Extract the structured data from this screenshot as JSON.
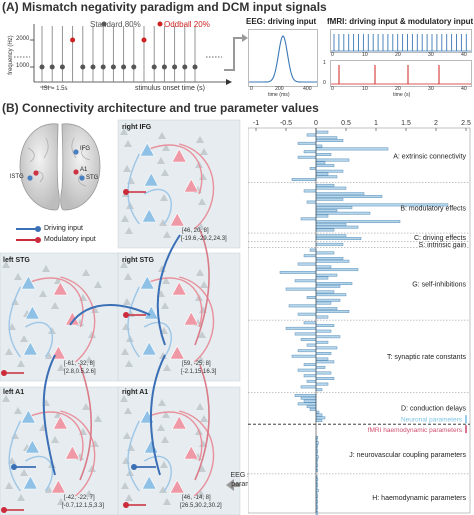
{
  "panel_a": {
    "heading": "(A) Mismatch negativity paradigm and DCM input signals",
    "legend_standard": "Standard 80%",
    "legend_oddball": "Oddball 20%",
    "y_axis_label": "frequency (Hz)",
    "y_ticks": [
      "2000",
      "1000"
    ],
    "x_axis_label": "stimulus onset time (s)",
    "isi_label": "ISI = 1.5s",
    "eeg_title": "EEG: driving input",
    "eeg_xlabel": "time (ms)",
    "eeg_xticks": [
      "0",
      "200",
      "400"
    ],
    "fmri_title": "fMRI: driving input & modulatory input",
    "fmri_top_ticks": [
      "0",
      "10",
      "20",
      "30",
      "40"
    ],
    "fmri_bottom_ticks": [
      "0",
      "10",
      "20",
      "30",
      "40"
    ],
    "fmri_y0": "0",
    "fmri_y1": "1",
    "fmri_xlabel": "time (s)",
    "colors": {
      "standard": "#555555",
      "oddball": "#cc2222",
      "eeg_line": "#3a78b5",
      "fmri_top": "#3a78b5",
      "fmri_bottom": "#cc2222"
    }
  },
  "panel_b": {
    "heading": "(B) Connectivity architecture and true parameter values",
    "brain_labels": {
      "ifg": "IFG",
      "a1": "A1",
      "stg": "STG",
      "lstg": "lSTG"
    },
    "legend_driving": "Driving input",
    "legend_modulatory": "Modulatory input",
    "nodes": {
      "right_ifg": {
        "name": "right IFG",
        "coords": "[46, 20, 8]",
        "params": "[-19.6,-29.2,24.3]"
      },
      "left_stg": {
        "name": "left STG",
        "coords": "[-61, -32, 8]",
        "params": "[2.8,0.5,2.6]"
      },
      "right_stg": {
        "name": "right STG",
        "coords": "[59, -25, 8]",
        "params": "[-2.1,15,16.3]"
      },
      "left_a1": {
        "name": "left A1",
        "coords": "[-42, -22, 7]",
        "params": "[-0.7,12.1,5,3.3]"
      },
      "right_a1": {
        "name": "right A1",
        "coords": "[46, -14, 8]",
        "params": "[26.5,30.2,30.2]"
      }
    },
    "eeg_spatial": "EEG spatial parameters",
    "colors": {
      "driving": "#3b6fb6",
      "modulatory": "#cc2b3b",
      "bar_fill": "#b5d5ea",
      "bar_stroke": "#5a8fba"
    }
  },
  "chart_data": {
    "type": "bar",
    "orientation": "horizontal",
    "x_ticks": [
      -1,
      -0.5,
      0,
      0.5,
      1,
      1.5,
      2,
      2.5
    ],
    "xlim": [
      -1,
      2.5
    ],
    "groups": [
      {
        "label": "A: extrinsic connectivity",
        "values": [
          0.2,
          -0.15,
          0.35,
          0.45,
          -0.3,
          0.1,
          1.2,
          -0.2,
          0.25,
          -0.3,
          0.55,
          0.15,
          0.3,
          -0.1,
          0.45,
          0.2,
          0.35,
          -0.4
        ]
      },
      {
        "label": "B: modulatory effects",
        "values": [
          0.3,
          0.5,
          -0.2,
          0.8,
          1.1,
          0.45,
          -0.15,
          2.2,
          0.6,
          0.35,
          0.9,
          0.2,
          -0.25,
          1.4,
          0.5,
          0.7,
          0.3
        ]
      },
      {
        "label": "C: driving effects",
        "values": [
          0.5,
          0.75
        ]
      },
      {
        "label": "S: intrinsic gain",
        "values": [
          0.45
        ]
      },
      {
        "label": "G: self-inhibitions",
        "values": [
          -0.1,
          0.3,
          -0.2,
          0.45,
          0.55,
          -0.3,
          0.25,
          0.7,
          -0.6,
          0.35,
          0.2,
          -0.35,
          0.6,
          0.4,
          -0.5,
          0.3,
          0.5,
          -0.15,
          0.4,
          0.25,
          -0.45,
          0.35,
          0.55,
          -0.3,
          0.2
        ]
      },
      {
        "label": "T: synaptic rate constants",
        "values": [
          -0.2,
          0.3,
          -0.5,
          0.25,
          -0.35,
          0.4,
          -0.25,
          0.2,
          -0.15,
          0.35,
          -0.3,
          0.25,
          -0.4,
          0.2,
          0.3,
          -0.2,
          0.15,
          -0.3,
          0.25,
          -0.2,
          0.3,
          -0.15,
          0.2,
          -0.25,
          0.1
        ]
      },
      {
        "label": "D: conduction delays",
        "values": [
          -0.35,
          -0.25,
          -0.2,
          -0.3,
          -0.15,
          -0.1,
          0.05,
          0.1,
          0.15,
          0.1
        ]
      },
      {
        "label": "J: neurovascular coupling parameters",
        "values": [
          0.03,
          0.02,
          0.04,
          0.03,
          0.02,
          0.03,
          0.02,
          0.04,
          0.03,
          0.02,
          0.03,
          0.02,
          0.03
        ]
      },
      {
        "label": "H: haemodynamic parameters",
        "values": [
          0.02,
          0.03,
          0.02,
          0.03,
          0.02,
          0.04,
          0.02,
          0.03,
          0.02,
          0.03,
          0.02,
          0.03,
          0.02,
          0.03,
          0.02,
          0.03
        ]
      }
    ],
    "neuronal_label": "Neuronal parameters",
    "fmri_label": "fMRI haemodynamic parameters"
  }
}
